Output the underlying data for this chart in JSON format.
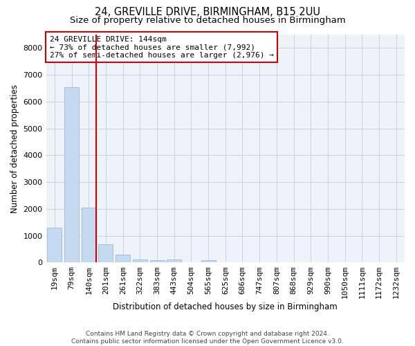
{
  "title1": "24, GREVILLE DRIVE, BIRMINGHAM, B15 2UU",
  "title2": "Size of property relative to detached houses in Birmingham",
  "xlabel": "Distribution of detached houses by size in Birmingham",
  "ylabel": "Number of detached properties",
  "bar_labels": [
    "19sqm",
    "79sqm",
    "140sqm",
    "201sqm",
    "261sqm",
    "322sqm",
    "383sqm",
    "443sqm",
    "504sqm",
    "565sqm",
    "625sqm",
    "686sqm",
    "747sqm",
    "807sqm",
    "868sqm",
    "929sqm",
    "990sqm",
    "1050sqm",
    "1111sqm",
    "1172sqm",
    "1232sqm"
  ],
  "bar_values": [
    1300,
    6550,
    2060,
    670,
    280,
    120,
    75,
    100,
    0,
    80,
    0,
    0,
    0,
    0,
    0,
    0,
    0,
    0,
    0,
    0,
    0
  ],
  "bar_color": "#c5d9f0",
  "bar_edge_color": "#9db8d8",
  "property_line_index": 2,
  "property_line_color": "#cc0000",
  "annotation_text": "24 GREVILLE DRIVE: 144sqm\n← 73% of detached houses are smaller (7,992)\n27% of semi-detached houses are larger (2,976) →",
  "annotation_box_color": "#ffffff",
  "annotation_box_edge_color": "#cc0000",
  "ylim": [
    0,
    8500
  ],
  "yticks": [
    0,
    1000,
    2000,
    3000,
    4000,
    5000,
    6000,
    7000,
    8000
  ],
  "bg_color": "#eef2f9",
  "grid_color": "#c8d0df",
  "footer_text": "Contains HM Land Registry data © Crown copyright and database right 2024.\nContains public sector information licensed under the Open Government Licence v3.0.",
  "title1_fontsize": 10.5,
  "title2_fontsize": 9.5,
  "xlabel_fontsize": 8.5,
  "ylabel_fontsize": 8.5,
  "tick_fontsize": 8,
  "annotation_fontsize": 8
}
